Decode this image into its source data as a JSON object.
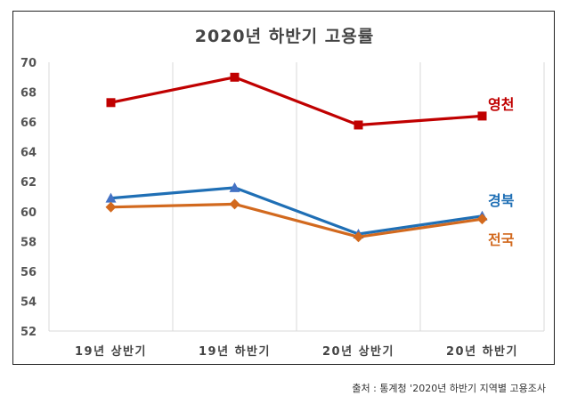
{
  "chart_data": {
    "type": "line",
    "title": "2020년 하반기 고용률",
    "categories": [
      "19년 상반기",
      "19년 하반기",
      "20년 상반기",
      "20년 하반기"
    ],
    "series": [
      {
        "name": "영천",
        "color": "#C00000",
        "marker": "square",
        "values": [
          67.3,
          69.0,
          65.8,
          66.4
        ]
      },
      {
        "name": "경북",
        "color": "#1F6FB5",
        "marker": "triangle",
        "values": [
          60.9,
          61.6,
          58.5,
          59.7
        ]
      },
      {
        "name": "전국",
        "color": "#D2691E",
        "marker": "diamond",
        "values": [
          60.3,
          60.5,
          58.3,
          59.5
        ]
      }
    ],
    "xlabel": "",
    "ylabel": "",
    "ylim": [
      52,
      70
    ],
    "yticks": [
      "70",
      "68",
      "66",
      "64",
      "62",
      "60",
      "58",
      "56",
      "54",
      "52"
    ],
    "grid": "vertical",
    "legend": "inline labels at right end"
  },
  "source": "출처 : 통계청 '2020년 하반기 지역별 고용조사"
}
